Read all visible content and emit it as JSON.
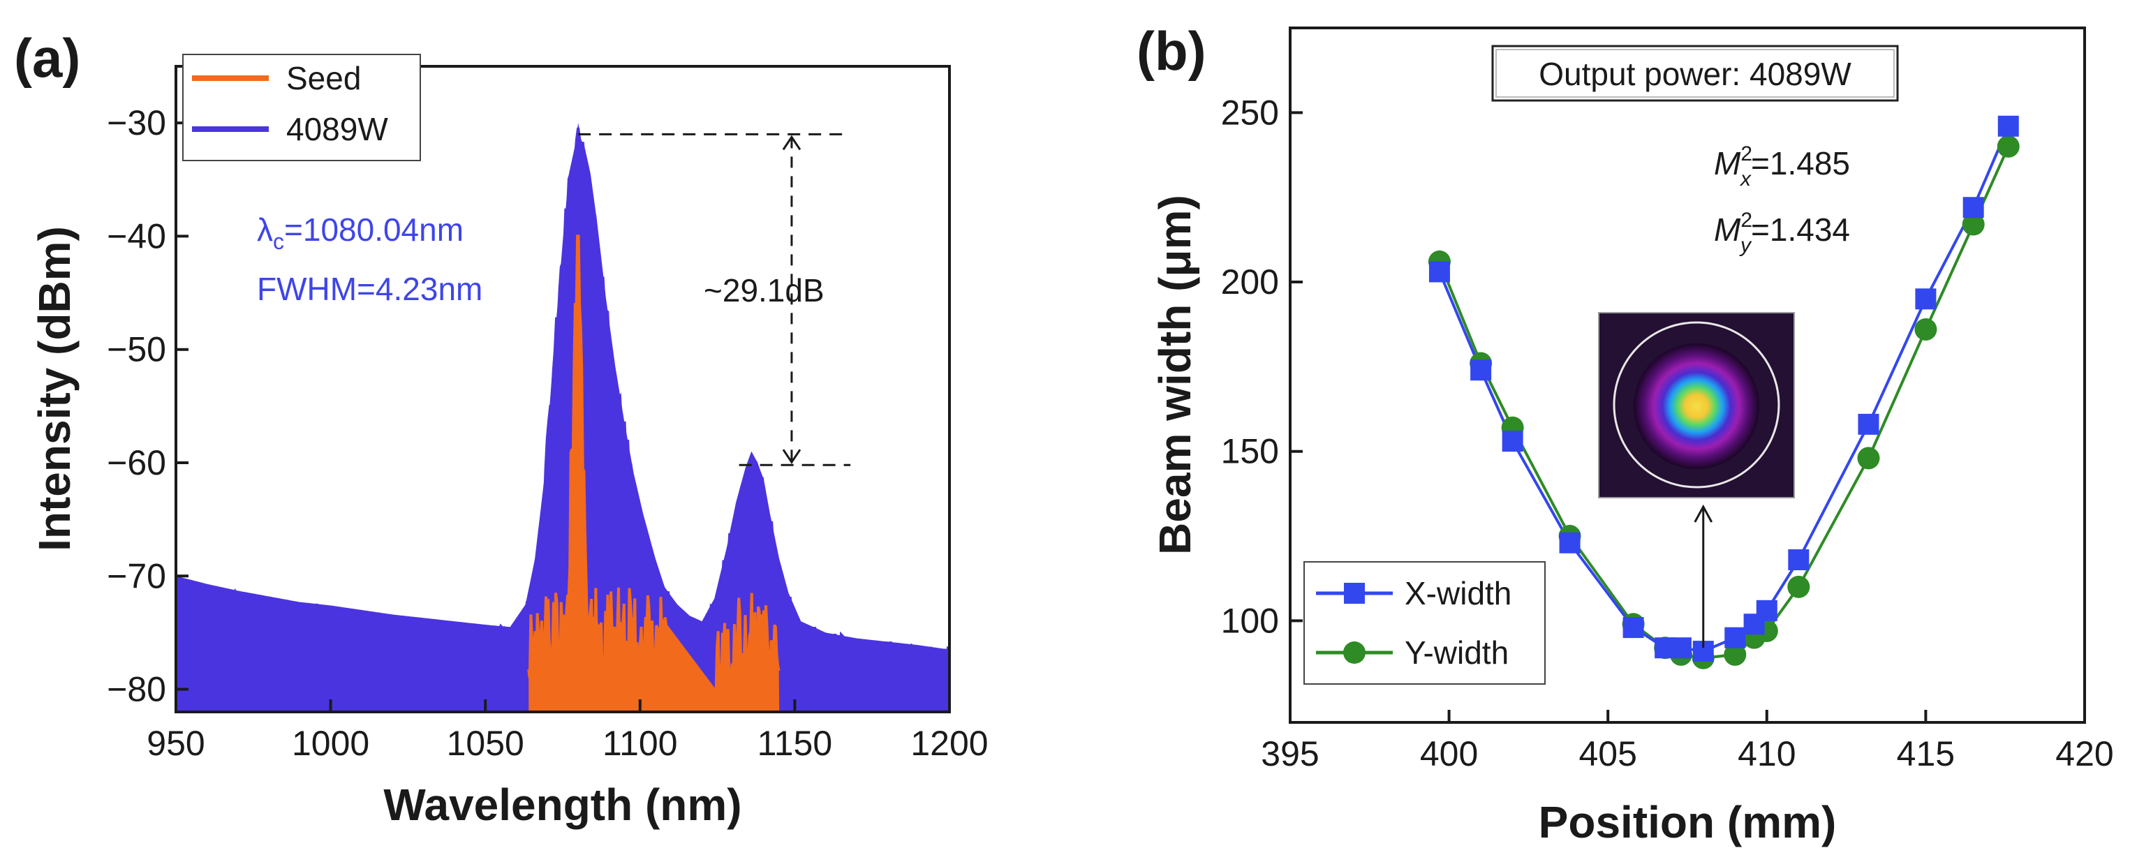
{
  "panels": {
    "a": {
      "label": "(a)"
    },
    "b": {
      "label": "(b)"
    }
  },
  "colors": {
    "seed": "#f26a1b",
    "spectrum_4089": "#4a34e0",
    "x_width": "#3347ee",
    "y_width": "#2e8b25",
    "annotation_blue": "#3f45e8",
    "axis": "#1a1a1a"
  },
  "chart_data": [
    {
      "id": "spectrum",
      "type": "line",
      "title": "",
      "xlabel": "Wavelength (nm)",
      "ylabel": "Intensity (dBm)",
      "xlim": [
        950,
        1200
      ],
      "ylim": [
        -82,
        -25
      ],
      "xticks": [
        950,
        1000,
        1050,
        1100,
        1150,
        1200
      ],
      "yticks": [
        -30,
        -40,
        -50,
        -60,
        -70,
        -80
      ],
      "xtick_labels": [
        "950",
        "1000",
        "1050",
        "1100",
        "1150",
        "1200"
      ],
      "ytick_labels": [
        "−30",
        "−40",
        "−50",
        "−60",
        "−70",
        "−80"
      ],
      "legend": {
        "position": "top-left",
        "entries": [
          {
            "name": "Seed",
            "color_key": "seed"
          },
          {
            "name": "4089W",
            "color_key": "spectrum_4089"
          }
        ]
      },
      "series": [
        {
          "name": "4089W",
          "x": [
            950,
            960,
            970,
            980,
            990,
            1000,
            1010,
            1020,
            1030,
            1040,
            1050,
            1058,
            1063,
            1066,
            1069,
            1072,
            1075,
            1077,
            1079,
            1080,
            1081,
            1082,
            1084,
            1086,
            1089,
            1092,
            1095,
            1098,
            1101,
            1105,
            1108,
            1112,
            1116,
            1120,
            1124,
            1128,
            1131,
            1134,
            1136,
            1138,
            1140,
            1142,
            1145,
            1148,
            1152,
            1160,
            1170,
            1180,
            1190,
            1200
          ],
          "y": [
            -71.5,
            -72.2,
            -72.8,
            -73.3,
            -73.8,
            -74.1,
            -74.5,
            -74.9,
            -75.2,
            -75.5,
            -75.8,
            -76.0,
            -74.0,
            -70.0,
            -63.0,
            -52.0,
            -42.0,
            -36.0,
            -33.5,
            -31.5,
            -33.0,
            -33.5,
            -36.0,
            -40.0,
            -47.0,
            -53.0,
            -58.0,
            -62.5,
            -66.0,
            -70.0,
            -72.5,
            -74.0,
            -75.0,
            -75.5,
            -73.5,
            -69.0,
            -65.0,
            -62.0,
            -60.5,
            -61.5,
            -63.0,
            -66.0,
            -70.0,
            -73.0,
            -75.5,
            -76.5,
            -77.0,
            -77.3,
            -77.6,
            -78.0
          ]
        },
        {
          "name": "Seed",
          "x": [
            1064,
            1068,
            1072,
            1075,
            1077,
            1078.5,
            1079.5,
            1080,
            1080.5,
            1081.5,
            1083,
            1086,
            1090,
            1095,
            1100,
            1105,
            1108,
            1125,
            1130,
            1135,
            1140,
            1145
          ],
          "y": [
            -76.0,
            -75.8,
            -75.5,
            -75.5,
            -68.0,
            -55.0,
            -44.0,
            -42.0,
            -46.0,
            -62.0,
            -75.0,
            -75.5,
            -75.5,
            -75.8,
            -76.0,
            -76.5,
            -77.0,
            -77.0,
            -76.5,
            -76.0,
            -76.5,
            -77.0
          ]
        }
      ],
      "annotations": {
        "lambda_symbol": "λ",
        "lambda_subscript": "c",
        "lambda_value": "=1080.04nm",
        "fwhm": "FWHM=4.23nm",
        "difference": "~29.1dB",
        "difference_top_y": -31,
        "difference_bottom_y": -60.2
      }
    },
    {
      "id": "beam_width",
      "type": "scatter",
      "title": "",
      "xlabel": "Position (mm)",
      "ylabel": "Beam width (μm)",
      "xlim": [
        395,
        420
      ],
      "ylim": [
        70,
        275
      ],
      "xticks": [
        395,
        400,
        405,
        410,
        415,
        420
      ],
      "yticks": [
        100,
        150,
        200,
        250
      ],
      "xtick_labels": [
        "395",
        "400",
        "405",
        "410",
        "415",
        "420"
      ],
      "ytick_labels": [
        "100",
        "150",
        "200",
        "250"
      ],
      "legend": {
        "position": "bottom-left",
        "entries": [
          {
            "name": "X-width",
            "color_key": "x_width"
          },
          {
            "name": "Y-width",
            "color_key": "y_width"
          }
        ]
      },
      "series": [
        {
          "name": "X-width",
          "x": [
            399.7,
            401.0,
            402.0,
            403.8,
            405.8,
            406.8,
            407.3,
            408.0,
            409.0,
            409.6,
            410.0,
            411.0,
            413.2,
            415.0,
            416.5,
            417.6
          ],
          "y": [
            203,
            174,
            153,
            123,
            98,
            92,
            92,
            91,
            95,
            99,
            103,
            118,
            158,
            195,
            222,
            246
          ]
        },
        {
          "name": "Y-width",
          "x": [
            399.7,
            401.0,
            402.0,
            403.8,
            405.8,
            406.8,
            407.3,
            408.0,
            409.0,
            409.6,
            410.0,
            411.0,
            413.2,
            415.0,
            416.5,
            417.6
          ],
          "y": [
            206,
            176,
            157,
            125,
            99,
            92,
            90,
            89,
            90,
            95,
            97,
            110,
            148,
            186,
            217,
            240
          ]
        }
      ],
      "annotations": {
        "output_power": "Output power: 4089W",
        "m2x_label": "M",
        "m2x_sup": "2",
        "m2x_sub": "x",
        "m2x_value": "=1.485",
        "m2y_label": "M",
        "m2y_sup": "2",
        "m2y_sub": "y",
        "m2y_value": "=1.434",
        "arrow_x": 408,
        "arrow_y_start": 92
      },
      "inset": {
        "description_icon": "beam-profile-image"
      }
    }
  ]
}
